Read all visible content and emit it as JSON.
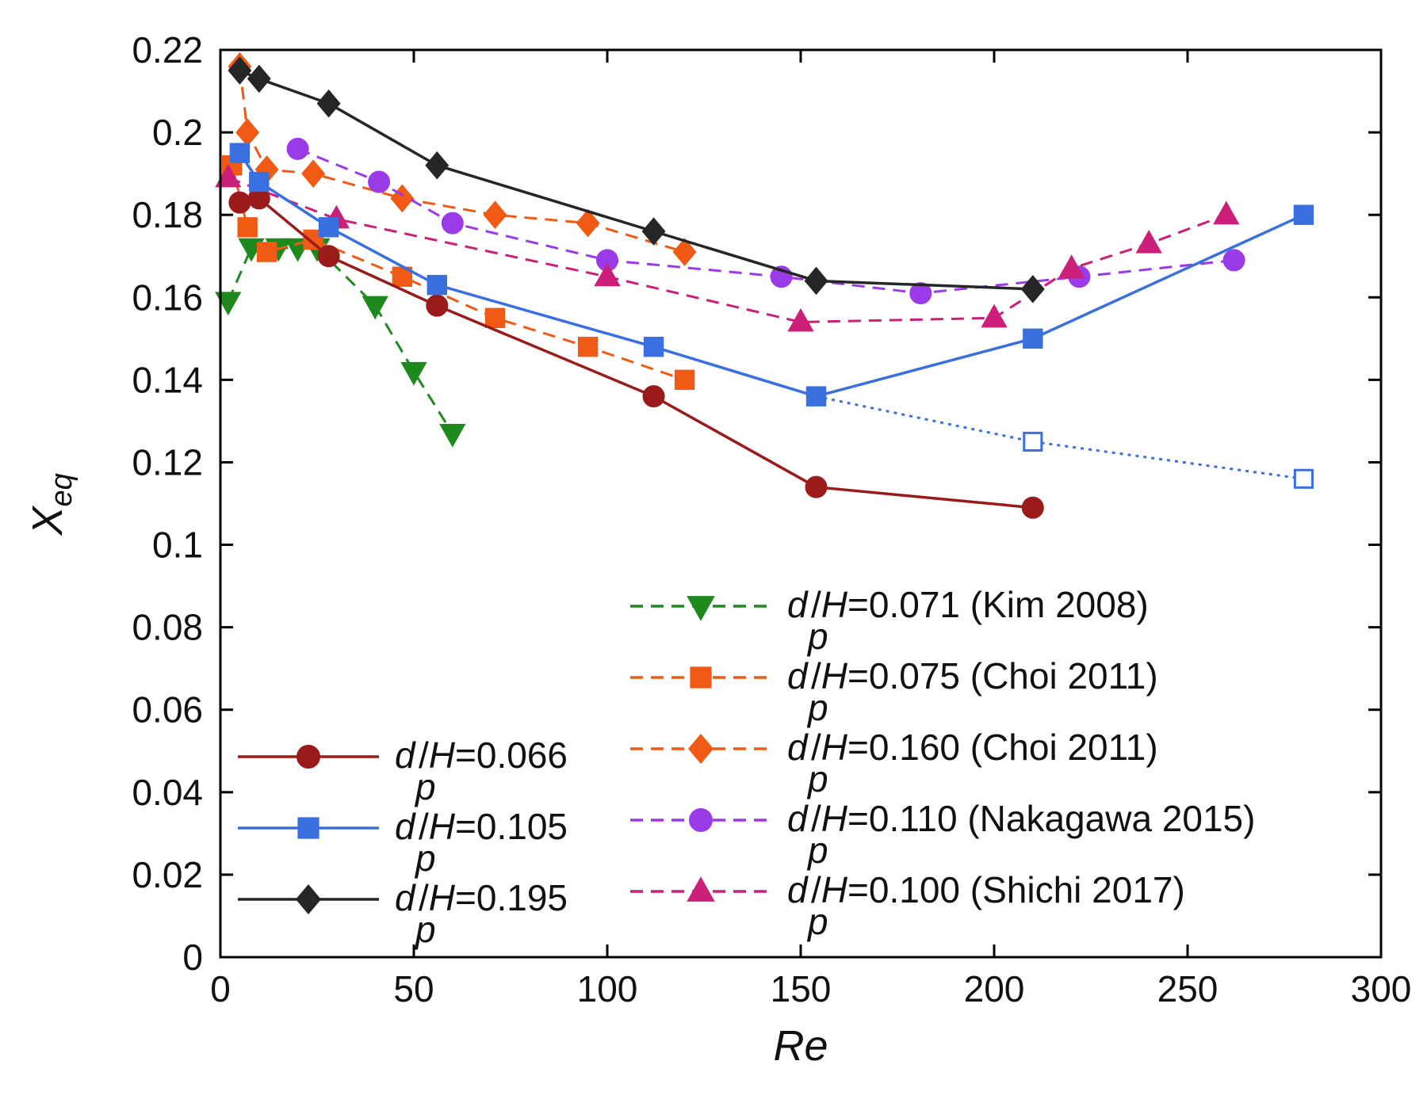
{
  "chart_data": {
    "type": "line",
    "xlabel": "Re",
    "ylabel": {
      "main": "X",
      "sub": "eq"
    },
    "xlim": [
      0,
      300
    ],
    "ylim": [
      0,
      0.22
    ],
    "xticks": [
      "0",
      "50",
      "100",
      "150",
      "200",
      "250",
      "300"
    ],
    "yticks": [
      "0",
      "0.02",
      "0.04",
      "0.06",
      "0.08",
      "0.1",
      "0.12",
      "0.14",
      "0.16",
      "0.18",
      "0.2",
      "0.22"
    ],
    "grid": false,
    "series": [
      {
        "id": "s066",
        "name": "d_p/H=0.066",
        "label": {
          "d": "d",
          "sub": "p",
          "rest": "/H=0.066"
        },
        "color": "#9b1b1b",
        "marker": "circle",
        "line": "solid",
        "legend_col": "left",
        "x": [
          5,
          10,
          28,
          56,
          112,
          154,
          210
        ],
        "y": [
          0.183,
          0.184,
          0.17,
          0.158,
          0.136,
          0.114,
          0.109
        ]
      },
      {
        "id": "s105",
        "name": "d_p/H=0.105",
        "label": {
          "d": "d",
          "sub": "p",
          "rest": "/H=0.105"
        },
        "color": "#3a6fe0",
        "marker": "square",
        "line": "solid",
        "legend_col": "left",
        "x": [
          5,
          10,
          28,
          56,
          112,
          154,
          210,
          280
        ],
        "y": [
          0.195,
          0.188,
          0.177,
          0.163,
          0.148,
          0.136,
          0.15,
          0.18
        ],
        "open_points": [
          5
        ]
      },
      {
        "id": "s105b",
        "name": "d_p/H=0.105 (open)",
        "color": "#3a6fe0",
        "marker": "square-open",
        "line": "dotted",
        "legend": false,
        "x": [
          154,
          210,
          280
        ],
        "y": [
          0.136,
          0.125,
          0.116
        ]
      },
      {
        "id": "s195",
        "name": "d_p/H=0.195",
        "label": {
          "d": "d",
          "sub": "p",
          "rest": "/H=0.195"
        },
        "color": "#262626",
        "marker": "diamond",
        "line": "solid",
        "legend_col": "left",
        "x": [
          5,
          10,
          28,
          56,
          112,
          154,
          210
        ],
        "y": [
          0.215,
          0.213,
          0.207,
          0.192,
          0.176,
          0.164,
          0.162
        ]
      },
      {
        "id": "kim",
        "name": "d_p/H=0.071 (Kim 2008)",
        "label": {
          "d": "d",
          "sub": "p",
          "rest": "/H=0.071 (Kim 2008)"
        },
        "color": "#1e8a1e",
        "marker": "triangle-down",
        "line": "dashed",
        "legend_col": "right",
        "x": [
          2,
          8,
          15,
          20,
          25,
          40,
          50,
          60
        ],
        "y": [
          0.159,
          0.172,
          0.172,
          0.172,
          0.172,
          0.158,
          0.142,
          0.127
        ]
      },
      {
        "id": "choi075",
        "name": "d_p/H=0.075 (Choi 2011)",
        "label": {
          "d": "d",
          "sub": "p",
          "rest": "/H=0.075 (Choi 2011)"
        },
        "color": "#f05a14",
        "marker": "square",
        "line": "dashed",
        "legend_col": "right",
        "x": [
          3,
          7,
          12,
          24,
          47,
          71,
          95,
          120
        ],
        "y": [
          0.192,
          0.177,
          0.171,
          0.174,
          0.165,
          0.155,
          0.148,
          0.14
        ]
      },
      {
        "id": "choi160",
        "name": "d_p/H=0.160 (Choi 2011)",
        "label": {
          "d": "d",
          "sub": "p",
          "rest": "/H=0.160 (Choi 2011)"
        },
        "color": "#f05a14",
        "marker": "diamond",
        "line": "dashed",
        "legend_col": "right",
        "x": [
          5,
          7,
          12,
          24,
          47,
          71,
          95,
          120
        ],
        "y": [
          0.216,
          0.2,
          0.191,
          0.19,
          0.184,
          0.18,
          0.178,
          0.171
        ]
      },
      {
        "id": "naka",
        "name": "d_p/H=0.110 (Nakagawa 2015)",
        "label": {
          "d": "d",
          "sub": "p",
          "rest": "/H=0.110 (Nakagawa 2015)"
        },
        "color": "#9b3be8",
        "marker": "circle",
        "line": "dashed",
        "legend_col": "right",
        "x": [
          20,
          41,
          60,
          100,
          145,
          181,
          222,
          262
        ],
        "y": [
          0.196,
          0.188,
          0.178,
          0.169,
          0.165,
          0.161,
          0.165,
          0.169
        ]
      },
      {
        "id": "shichi",
        "name": "d_p/H=0.100 (Shichi 2017)",
        "label": {
          "d": "d",
          "sub": "p",
          "rest": "/H=0.100 (Shichi 2017)"
        },
        "color": "#cc1f7a",
        "marker": "triangle-up",
        "line": "dashed",
        "legend_col": "right",
        "x": [
          2,
          30,
          100,
          150,
          200,
          220,
          240,
          260
        ],
        "y": [
          0.189,
          0.179,
          0.165,
          0.154,
          0.155,
          0.167,
          0.173,
          0.18
        ]
      }
    ]
  }
}
